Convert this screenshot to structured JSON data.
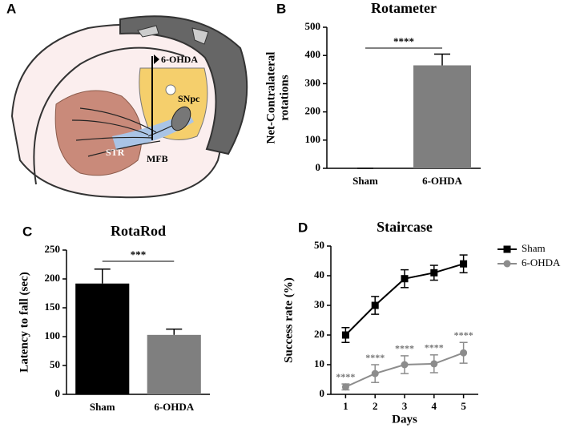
{
  "diagram": {
    "panel": "A",
    "labels": [
      "6-OHDA",
      "SNpc",
      "STR",
      "MFB"
    ]
  },
  "chart_data": [
    {
      "type": "bar",
      "panel": "B",
      "title": "Rotameter",
      "ylabel": [
        "Net-Contralateral",
        "rotations"
      ],
      "categories": [
        "Sham",
        "6-OHDA"
      ],
      "values": [
        0,
        365
      ],
      "errors": [
        0,
        40
      ],
      "colors": [
        "#7f7f7f",
        "#7f7f7f"
      ],
      "ylim": [
        0,
        500
      ],
      "yticks": [
        0,
        100,
        200,
        300,
        400,
        500
      ],
      "significance": "****"
    },
    {
      "type": "bar",
      "panel": "C",
      "title": "RotaRod",
      "ylabel": [
        "Latency to fall (sec)"
      ],
      "categories": [
        "Sham",
        "6-OHDA"
      ],
      "values": [
        192,
        103
      ],
      "errors": [
        25,
        10
      ],
      "colors": [
        "#000000",
        "#7f7f7f"
      ],
      "ylim": [
        0,
        250
      ],
      "yticks": [
        0,
        50,
        100,
        150,
        200,
        250
      ],
      "significance": "***"
    },
    {
      "type": "line",
      "panel": "D",
      "title": "Staircase",
      "ylabel": [
        "Success rate (%)"
      ],
      "xlabel": "Days",
      "x": [
        1,
        2,
        3,
        4,
        5
      ],
      "xlim": [
        0.5,
        5.5
      ],
      "xticks": [
        1,
        2,
        3,
        4,
        5
      ],
      "ylim": [
        0,
        50
      ],
      "yticks": [
        0,
        10,
        20,
        30,
        40,
        50
      ],
      "series": [
        {
          "name": "Sham",
          "color": "#000000",
          "marker": "square",
          "values": [
            20,
            30,
            39,
            41,
            44
          ],
          "errors": [
            2.5,
            3,
            3,
            2.5,
            3
          ]
        },
        {
          "name": "6-OHDA",
          "color": "#8c8c8c",
          "marker": "circle",
          "values": [
            2.5,
            7,
            10,
            10.3,
            14
          ],
          "errors": [
            1,
            3,
            3,
            3,
            3.5
          ],
          "annotations": [
            "****",
            "****",
            "****",
            "****",
            "****"
          ]
        }
      ]
    }
  ]
}
